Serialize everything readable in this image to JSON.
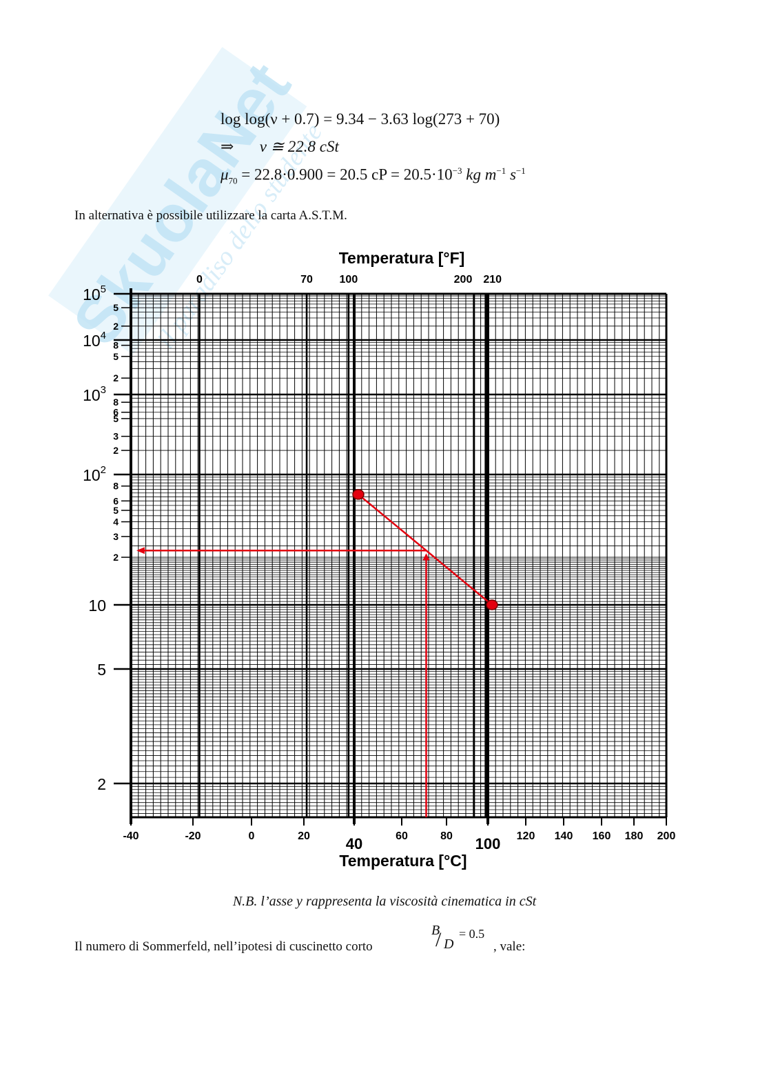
{
  "equations": {
    "line1": "log log(ν + 0.7) = 9.34 − 3.63 log(273 + 70)",
    "line2_arrow": "⇒",
    "line2": "ν ≅ 22.8 cSt",
    "line3_mu": "μ",
    "line3_sub": "70",
    "line3_rest": " = 22.8·0.900 = 20.5 cP = 20.5·10",
    "line3_exp": "−3",
    "line3_units": " kg m",
    "line3_exp2": "−1",
    "line3_units2": " s",
    "line3_exp3": "−1"
  },
  "intro_text": "In alternativa è possibile utilizzare la carta A.S.T.M.",
  "caption": "N.B. l’asse y rappresenta la viscosità cinematica in cSt",
  "sommerfeld": {
    "text_before": "Il numero di Sommerfeld, nell’ipotesi di cuscinetto corto",
    "frac_num": "B",
    "frac_den": "D",
    "frac_value": "= 0.5",
    "text_after": ", vale:"
  },
  "watermark": {
    "brand": "SkuolaNet",
    "tagline": "il paradiso dello studente"
  },
  "colors": {
    "grid": "#000000",
    "annotation": "#e3000f",
    "watermark": "#cfe9f7"
  },
  "chart_data": {
    "type": "line",
    "chart_kind": "ASTM viscosity–temperature chart",
    "x_axis_bottom": {
      "title": "Temperatura [°C]",
      "ticks": [
        "-40",
        "-20",
        "0",
        "20",
        "40",
        "60",
        "80",
        "100",
        "120",
        "140",
        "160",
        "180",
        "200"
      ],
      "tick_values": [
        -40,
        -20,
        0,
        20,
        40,
        60,
        80,
        100,
        120,
        140,
        160,
        180,
        200
      ],
      "range": [
        -40,
        200
      ]
    },
    "x_axis_top": {
      "title": "Temperatura [°F]",
      "ticks": [
        "0",
        "70",
        "100",
        "200",
        "210"
      ],
      "tick_values": [
        0,
        70,
        100,
        200,
        210
      ]
    },
    "y_axis": {
      "scale": "log-log (ASTM)",
      "major_ticks": [
        {
          "label_base": "10",
          "label_exp": "5",
          "value": 100000
        },
        {
          "label_base": "10",
          "label_exp": "4",
          "value": 10000
        },
        {
          "label_base": "10",
          "label_exp": "3",
          "value": 1000
        },
        {
          "label_base": "10",
          "label_exp": "2",
          "value": 100
        },
        {
          "label_base": "10",
          "label_exp": "",
          "value": 10
        },
        {
          "label_base": "5",
          "label_exp": "",
          "value": 5
        },
        {
          "label_base": "2",
          "label_exp": "",
          "value": 2
        }
      ],
      "minor_ticks": [
        {
          "label": "5",
          "value": 50000
        },
        {
          "label": "2",
          "value": 20000
        },
        {
          "label": "8",
          "value": 8000
        },
        {
          "label": "5",
          "value": 5000
        },
        {
          "label": "2",
          "value": 2000
        },
        {
          "label": "8",
          "value": 800
        },
        {
          "label": "6",
          "value": 600
        },
        {
          "label": "5",
          "value": 500
        },
        {
          "label": "3",
          "value": 300
        },
        {
          "label": "2",
          "value": 200
        },
        {
          "label": "8",
          "value": 80
        },
        {
          "label": "6",
          "value": 60
        },
        {
          "label": "5",
          "value": 50
        },
        {
          "label": "4",
          "value": 40
        },
        {
          "label": "3",
          "value": 30
        },
        {
          "label": "2",
          "value": 20
        }
      ],
      "range": [
        1.5,
        100000
      ]
    },
    "emphasized_x_lines": [
      40,
      100
    ],
    "points": [
      {
        "x": 40,
        "y": 68
      },
      {
        "x": 100,
        "y": 10
      }
    ],
    "annotation_line": {
      "x": [
        40,
        100
      ],
      "y": [
        68,
        10
      ]
    },
    "reading": {
      "x": 70,
      "y": 22.8
    }
  }
}
